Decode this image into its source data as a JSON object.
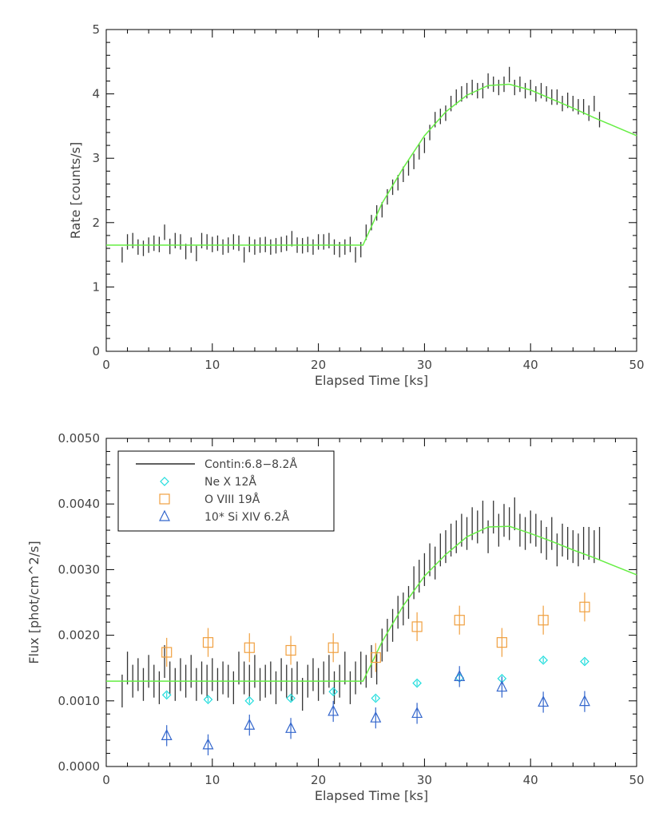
{
  "chart_data": [
    {
      "type": "scatter",
      "title": "",
      "xlabel": "Elapsed Time [ks]",
      "ylabel": "Rate [counts/s]",
      "xlim": [
        0,
        50
      ],
      "ylim": [
        0,
        5
      ],
      "xticks": [
        0,
        10,
        20,
        30,
        40,
        50
      ],
      "xtick_labels": [
        "0",
        "10",
        "20",
        "30",
        "40",
        "50"
      ],
      "yticks": [
        0,
        1,
        2,
        3,
        4,
        5
      ],
      "ytick_labels": [
        "0",
        "1",
        "2",
        "3",
        "4",
        "5"
      ],
      "colors": {
        "data": "#333333",
        "model": "#66ee44"
      },
      "series": [
        {
          "kind": "errorbars",
          "x": [
            1.5,
            2.0,
            2.5,
            3.0,
            3.5,
            4.0,
            4.5,
            5.0,
            5.5,
            6.0,
            6.5,
            7.0,
            7.5,
            8.0,
            8.5,
            9.0,
            9.5,
            10.0,
            10.5,
            11.0,
            11.5,
            12.0,
            12.5,
            13.0,
            13.5,
            14.0,
            14.5,
            15.0,
            15.5,
            16.0,
            16.5,
            17.0,
            17.5,
            18.0,
            18.5,
            19.0,
            19.5,
            20.0,
            20.5,
            21.0,
            21.5,
            22.0,
            22.5,
            23.0,
            23.5,
            24.0,
            24.5,
            25.0,
            25.5,
            26.0,
            26.5,
            27.0,
            27.5,
            28.0,
            28.5,
            29.0,
            29.5,
            30.0,
            30.5,
            31.0,
            31.5,
            32.0,
            32.5,
            33.0,
            33.5,
            34.0,
            34.5,
            35.0,
            35.5,
            36.0,
            36.5,
            37.0,
            37.5,
            38.0,
            38.5,
            39.0,
            39.5,
            40.0,
            40.5,
            41.0,
            41.5,
            42.0,
            42.5,
            43.0,
            43.5,
            44.0,
            44.5,
            45.0,
            45.5,
            46.0,
            46.5
          ],
          "y": [
            1.5,
            1.7,
            1.72,
            1.62,
            1.6,
            1.65,
            1.68,
            1.66,
            1.85,
            1.63,
            1.72,
            1.7,
            1.55,
            1.65,
            1.52,
            1.72,
            1.7,
            1.66,
            1.68,
            1.62,
            1.65,
            1.7,
            1.68,
            1.5,
            1.66,
            1.62,
            1.65,
            1.66,
            1.62,
            1.64,
            1.66,
            1.68,
            1.75,
            1.65,
            1.64,
            1.66,
            1.62,
            1.7,
            1.7,
            1.72,
            1.62,
            1.58,
            1.62,
            1.66,
            1.5,
            1.58,
            1.85,
            2.0,
            2.15,
            2.2,
            2.4,
            2.55,
            2.62,
            2.75,
            2.85,
            2.95,
            3.1,
            3.2,
            3.4,
            3.6,
            3.65,
            3.7,
            3.85,
            3.95,
            4.0,
            4.05,
            4.1,
            4.05,
            4.05,
            4.2,
            4.15,
            4.1,
            4.15,
            4.3,
            4.1,
            4.15,
            4.05,
            4.1,
            4.0,
            4.05,
            4.0,
            3.95,
            3.95,
            3.85,
            3.9,
            3.85,
            3.8,
            3.8,
            3.7,
            3.85,
            3.6
          ],
          "yerr": 0.12
        },
        {
          "kind": "model-line",
          "x": [
            0,
            2,
            4,
            6,
            8,
            10,
            12,
            14,
            16,
            18,
            20,
            22,
            24.2,
            26,
            28,
            30,
            32,
            34,
            36,
            38,
            40,
            42,
            44,
            46,
            48,
            50
          ],
          "y": [
            1.65,
            1.65,
            1.65,
            1.65,
            1.65,
            1.65,
            1.65,
            1.65,
            1.65,
            1.65,
            1.65,
            1.65,
            1.65,
            2.3,
            2.85,
            3.35,
            3.72,
            3.98,
            4.13,
            4.15,
            4.06,
            3.92,
            3.78,
            3.63,
            3.49,
            3.35
          ]
        }
      ]
    },
    {
      "type": "scatter",
      "title": "",
      "xlabel": "Elapsed Time [ks]",
      "ylabel": "Flux [phot/cm^2/s]",
      "xlim": [
        0,
        50
      ],
      "ylim": [
        0,
        0.005
      ],
      "xticks": [
        0,
        10,
        20,
        30,
        40,
        50
      ],
      "xtick_labels": [
        "0",
        "10",
        "20",
        "30",
        "40",
        "50"
      ],
      "yticks": [
        0,
        0.001,
        0.002,
        0.003,
        0.004,
        0.005
      ],
      "ytick_labels": [
        "0.0000",
        "0.0010",
        "0.0020",
        "0.0030",
        "0.0040",
        "0.0050"
      ],
      "legend_position": "top-left",
      "legend": [
        {
          "label": "Contin:6.8−8.2Å",
          "marker": "line",
          "color": "#000000"
        },
        {
          "label": "Ne X 12Å",
          "marker": "diamond",
          "color": "#22dddd"
        },
        {
          "label": "O VIII 19Å",
          "marker": "square",
          "color": "#f0a040"
        },
        {
          "label": "10* Si XIV 6.2Å",
          "marker": "triangle",
          "color": "#3366cc"
        }
      ],
      "colors": {
        "data": "#333333",
        "model": "#66ee44",
        "ne": "#22dddd",
        "o": "#f0a040",
        "si": "#3366cc"
      },
      "series": [
        {
          "kind": "errorbars",
          "x": [
            1.5,
            2.0,
            2.5,
            3.0,
            3.5,
            4.0,
            4.5,
            5.0,
            5.5,
            6.0,
            6.5,
            7.0,
            7.5,
            8.0,
            8.5,
            9.0,
            9.5,
            10.0,
            10.5,
            11.0,
            11.5,
            12.0,
            12.5,
            13.0,
            13.5,
            14.0,
            14.5,
            15.0,
            15.5,
            16.0,
            16.5,
            17.0,
            17.5,
            18.0,
            18.5,
            19.0,
            19.5,
            20.0,
            20.5,
            21.0,
            21.5,
            22.0,
            22.5,
            23.0,
            23.5,
            24.0,
            24.5,
            25.0,
            25.5,
            26.0,
            26.5,
            27.0,
            27.5,
            28.0,
            28.5,
            29.0,
            29.5,
            30.0,
            30.5,
            31.0,
            31.5,
            32.0,
            32.5,
            33.0,
            33.5,
            34.0,
            34.5,
            35.0,
            35.5,
            36.0,
            36.5,
            37.0,
            37.5,
            38.0,
            38.5,
            39.0,
            39.5,
            40.0,
            40.5,
            41.0,
            41.5,
            42.0,
            42.5,
            43.0,
            43.5,
            44.0,
            44.5,
            45.0,
            45.5,
            46.0,
            46.5
          ],
          "y": [
            0.00115,
            0.0015,
            0.0013,
            0.0014,
            0.00125,
            0.00145,
            0.0013,
            0.0012,
            0.0016,
            0.00135,
            0.00125,
            0.0014,
            0.0013,
            0.00145,
            0.00125,
            0.00135,
            0.0013,
            0.0014,
            0.00125,
            0.00135,
            0.0013,
            0.0012,
            0.0015,
            0.00135,
            0.0013,
            0.00145,
            0.00125,
            0.0013,
            0.00135,
            0.0012,
            0.0014,
            0.0013,
            0.00125,
            0.00135,
            0.0011,
            0.0013,
            0.0014,
            0.00125,
            0.00135,
            0.00145,
            0.0012,
            0.0013,
            0.0015,
            0.0012,
            0.00135,
            0.0015,
            0.00145,
            0.0016,
            0.0015,
            0.00185,
            0.002,
            0.00215,
            0.00235,
            0.0024,
            0.0025,
            0.0028,
            0.0029,
            0.003,
            0.00315,
            0.0031,
            0.0033,
            0.00335,
            0.00345,
            0.0035,
            0.0036,
            0.00355,
            0.0037,
            0.00365,
            0.0038,
            0.0035,
            0.0038,
            0.0036,
            0.00375,
            0.0037,
            0.00385,
            0.0036,
            0.00355,
            0.00365,
            0.0036,
            0.0035,
            0.0034,
            0.00355,
            0.0033,
            0.00345,
            0.0034,
            0.00335,
            0.0033,
            0.0034,
            0.0034,
            0.00335,
            0.0034
          ],
          "yerr": 0.00025
        },
        {
          "kind": "model-line",
          "x": [
            0,
            2,
            4,
            6,
            8,
            10,
            12,
            14,
            16,
            18,
            20,
            22,
            24.2,
            26,
            28,
            30,
            32,
            34,
            36,
            38,
            40,
            42,
            44,
            46,
            48,
            50
          ],
          "y": [
            0.0013,
            0.0013,
            0.0013,
            0.0013,
            0.0013,
            0.0013,
            0.0013,
            0.0013,
            0.0013,
            0.0013,
            0.0013,
            0.0013,
            0.0013,
            0.0019,
            0.00245,
            0.0029,
            0.00323,
            0.0035,
            0.00365,
            0.00366,
            0.00355,
            0.00343,
            0.0033,
            0.00318,
            0.00305,
            0.00292
          ]
        },
        {
          "name": "Ne X 12Å",
          "kind": "diamond",
          "x": [
            5.7,
            9.6,
            13.5,
            17.4,
            21.4,
            25.4,
            29.3,
            33.3,
            37.3,
            41.2,
            45.1
          ],
          "y": [
            0.00109,
            0.00102,
            0.001,
            0.00104,
            0.00114,
            0.00104,
            0.00127,
            0.00135,
            0.00134,
            0.00162,
            0.0016
          ],
          "yerr": [
            4e-05,
            4e-05,
            4e-05,
            4e-05,
            4e-05,
            4e-05,
            4e-05,
            4e-05,
            4e-05,
            4e-05,
            4e-05
          ]
        },
        {
          "name": "O VIII 19Å",
          "kind": "square",
          "x": [
            5.7,
            9.6,
            13.5,
            17.4,
            21.4,
            25.4,
            29.3,
            33.3,
            37.3,
            41.2,
            45.1
          ],
          "y": [
            0.00174,
            0.00189,
            0.00181,
            0.00177,
            0.00181,
            0.00166,
            0.00213,
            0.00223,
            0.00189,
            0.00223,
            0.00243
          ],
          "yerr": [
            0.00022,
            0.00022,
            0.00022,
            0.00022,
            0.00022,
            0.00022,
            0.00022,
            0.00022,
            0.00022,
            0.00022,
            0.00022
          ]
        },
        {
          "name": "10* Si XIV 6.2Å",
          "kind": "triangle",
          "x": [
            5.7,
            9.6,
            13.5,
            17.4,
            21.4,
            25.4,
            29.3,
            33.3,
            37.3,
            41.2,
            45.1
          ],
          "y": [
            0.00047,
            0.00033,
            0.00063,
            0.00058,
            0.00084,
            0.00074,
            0.00081,
            0.00137,
            0.00121,
            0.00098,
            0.00099
          ],
          "yerr": [
            0.00016,
            0.00016,
            0.00016,
            0.00016,
            0.00016,
            0.00016,
            0.00016,
            0.00016,
            0.00016,
            0.00016,
            0.00016
          ]
        }
      ]
    }
  ]
}
